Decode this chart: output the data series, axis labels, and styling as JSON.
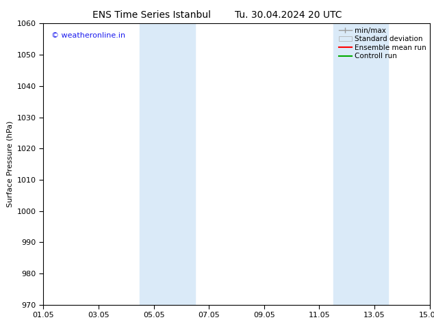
{
  "title_left": "ENS Time Series Istanbul",
  "title_right": "Tu. 30.04.2024 20 UTC",
  "ylabel": "Surface Pressure (hPa)",
  "ylim": [
    970,
    1060
  ],
  "yticks": [
    970,
    980,
    990,
    1000,
    1010,
    1020,
    1030,
    1040,
    1050,
    1060
  ],
  "xlim_start": 0.0,
  "xlim_end": 14.0,
  "xtick_labels": [
    "01.05",
    "03.05",
    "05.05",
    "07.05",
    "09.05",
    "11.05",
    "13.05",
    "15.05"
  ],
  "xtick_positions": [
    0,
    2,
    4,
    6,
    8,
    10,
    12,
    14
  ],
  "shaded_regions": [
    {
      "xmin": 3.5,
      "xmax": 5.5
    },
    {
      "xmin": 10.5,
      "xmax": 12.5
    }
  ],
  "shaded_color": "#daeaf8",
  "watermark_text": "© weatheronline.in",
  "watermark_color": "#1a1aee",
  "legend_labels": [
    "min/max",
    "Standard deviation",
    "Ensemble mean run",
    "Controll run"
  ],
  "bg_color": "#ffffff",
  "plot_bg_color": "#ffffff",
  "title_fontsize": 10,
  "axis_label_fontsize": 8,
  "tick_fontsize": 8,
  "legend_fontsize": 7.5
}
